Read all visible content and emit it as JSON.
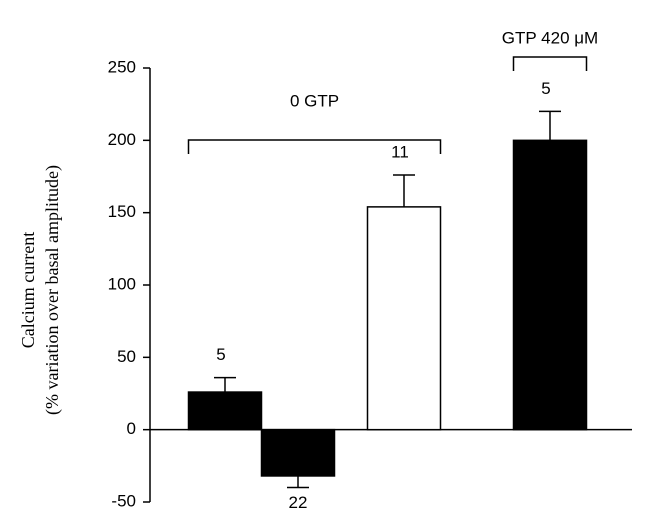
{
  "chart_data": {
    "type": "bar",
    "y_label": [
      "Calcium current",
      "(% variation over basal amplitude)"
    ],
    "categories": [
      null,
      null,
      null,
      null
    ],
    "values": [
      26,
      -32,
      154,
      200
    ],
    "errors": [
      10,
      8,
      22,
      20
    ],
    "n_labels": [
      "5",
      "22",
      "11",
      "5"
    ],
    "colors": [
      "#000000",
      "#000000",
      "#ffffff",
      "#000000"
    ],
    "annotations": [
      {
        "text": "0 GTP"
      },
      {
        "text": "GTP 420 μM"
      }
    ],
    "ylim": [
      -50,
      250
    ],
    "yticks": [
      -50,
      0,
      50,
      100,
      150,
      200,
      250
    ]
  }
}
